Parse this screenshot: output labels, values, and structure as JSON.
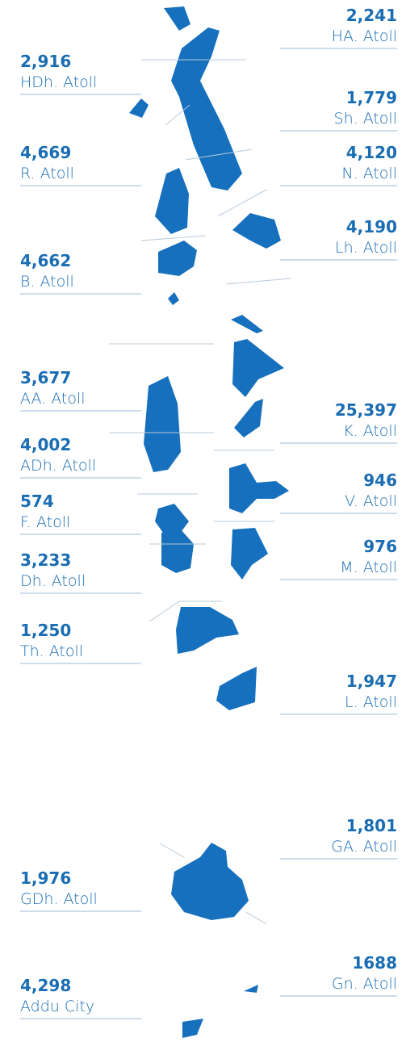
{
  "right": [
    {
      "value": "2,241",
      "name": "HA. Atoll"
    },
    {
      "value": "1,779",
      "name": "Sh. Atoll"
    },
    {
      "value": "4,120",
      "name": "N. Atoll"
    },
    {
      "value": "4,190",
      "name": "Lh. Atoll"
    },
    {
      "value": "25,397",
      "name": "K. Atoll"
    },
    {
      "value": "946",
      "name": "V. Atoll"
    },
    {
      "value": "976",
      "name": "M. Atoll"
    },
    {
      "value": "1,947",
      "name": "L. Atoll"
    },
    {
      "value": "1,801",
      "name": "GA. Atoll"
    },
    {
      "value": "1688",
      "name": "Gn. Atoll"
    }
  ],
  "left": [
    {
      "value": "2,916",
      "name": "HDh. Atoll"
    },
    {
      "value": "4,669",
      "name": "R. Atoll"
    },
    {
      "value": "4,662",
      "name": "B. Atoll"
    },
    {
      "value": "3,677",
      "name": "AA. Atoll"
    },
    {
      "value": "4,002",
      "name": "ADh. Atoll"
    },
    {
      "value": "574",
      "name": "F. Atoll"
    },
    {
      "value": "3,233",
      "name": "Dh. Atoll"
    },
    {
      "value": "1,250",
      "name": "Th. Atoll"
    },
    {
      "value": "1,976",
      "name": "GDh. Atoll"
    },
    {
      "value": "4,298",
      "name": "Addu City"
    }
  ]
}
